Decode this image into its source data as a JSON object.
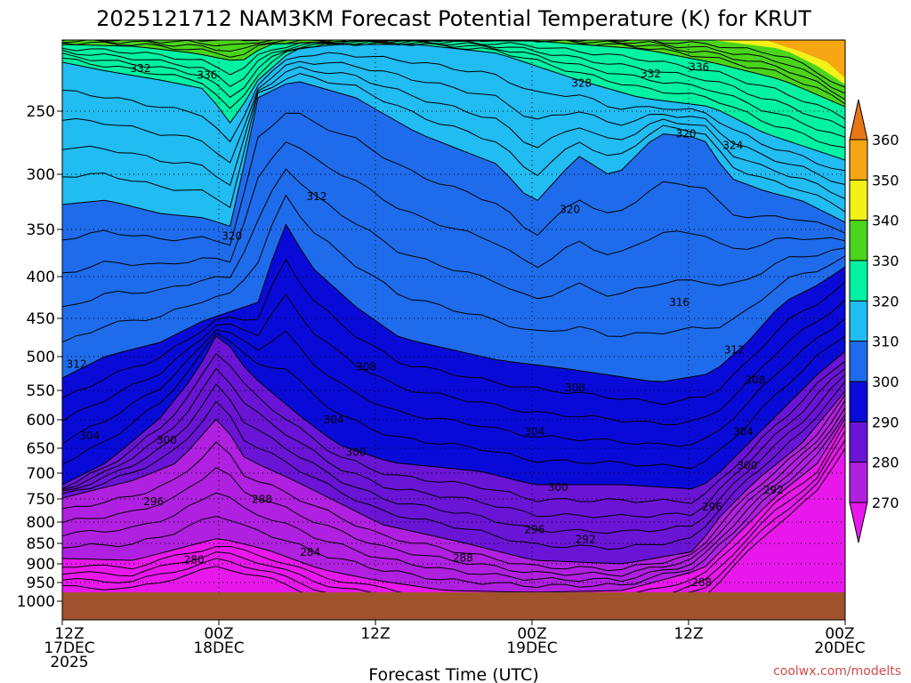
{
  "chart_data": {
    "type": "heatmap",
    "title": "2025121712 NAM3KM Forecast Potential Temperature (K) for KRUT",
    "xlabel": "Forecast Time (UTC)",
    "ylabel": "",
    "credit": "coolwx.com/modelts",
    "x_hours": [
      0,
      12,
      24,
      36,
      48,
      60
    ],
    "x_tick_labels": [
      [
        "12Z",
        "17DEC",
        "2025"
      ],
      [
        "00Z",
        "18DEC"
      ],
      [
        "12Z"
      ],
      [
        "00Z",
        "19DEC"
      ],
      [
        "12Z"
      ],
      [
        "00Z",
        "20DEC"
      ]
    ],
    "y_ticks": [
      250,
      300,
      350,
      400,
      450,
      500,
      550,
      600,
      650,
      700,
      750,
      800,
      850,
      900,
      950,
      1000
    ],
    "y_tick_labels": [
      "250",
      "300",
      "350",
      "400",
      "450",
      "500",
      "550",
      "600",
      "650",
      "700",
      "750",
      "800",
      "850",
      "900",
      "950",
      "1000"
    ],
    "ylim_hPa": [
      200,
      1030
    ],
    "xlim_hours": [
      0,
      60
    ],
    "colorbar": {
      "labels": [
        "360",
        "350",
        "340",
        "330",
        "320",
        "310",
        "300",
        "290",
        "280",
        "270"
      ],
      "levels": [
        270,
        280,
        290,
        300,
        310,
        320,
        330,
        340,
        350,
        360
      ],
      "colors": [
        "#e818ec",
        "#b020e0",
        "#6a14d6",
        "#0a0ad8",
        "#1e6cec",
        "#20bcf2",
        "#00f2a2",
        "#4ad41c",
        "#f2f218",
        "#f5a612",
        "#e87614"
      ]
    },
    "ground_color": "#a0522d",
    "contour_labels": [
      {
        "text": "332",
        "x_hour": 6.0,
        "p": 218
      },
      {
        "text": "336",
        "x_hour": 11.1,
        "p": 223
      },
      {
        "text": "328",
        "x_hour": 39.8,
        "p": 229
      },
      {
        "text": "332",
        "x_hour": 45.1,
        "p": 222
      },
      {
        "text": "336",
        "x_hour": 48.8,
        "p": 217
      },
      {
        "text": "320",
        "x_hour": 47.8,
        "p": 268
      },
      {
        "text": "324",
        "x_hour": 51.4,
        "p": 277
      },
      {
        "text": "312",
        "x_hour": 19.5,
        "p": 320
      },
      {
        "text": "320",
        "x_hour": 13.0,
        "p": 357
      },
      {
        "text": "320",
        "x_hour": 38.9,
        "p": 332
      },
      {
        "text": "316",
        "x_hour": 47.3,
        "p": 431
      },
      {
        "text": "312",
        "x_hour": 51.5,
        "p": 491
      },
      {
        "text": "312",
        "x_hour": 1.1,
        "p": 511
      },
      {
        "text": "308",
        "x_hour": 23.3,
        "p": 515
      },
      {
        "text": "308",
        "x_hour": 39.3,
        "p": 546
      },
      {
        "text": "308",
        "x_hour": 53.1,
        "p": 535
      },
      {
        "text": "304",
        "x_hour": 2.1,
        "p": 628
      },
      {
        "text": "304",
        "x_hour": 20.8,
        "p": 600
      },
      {
        "text": "304",
        "x_hour": 36.2,
        "p": 621
      },
      {
        "text": "304",
        "x_hour": 52.2,
        "p": 621
      },
      {
        "text": "300",
        "x_hour": 8.0,
        "p": 636
      },
      {
        "text": "300",
        "x_hour": 22.5,
        "p": 658
      },
      {
        "text": "300",
        "x_hour": 38.0,
        "p": 728
      },
      {
        "text": "300",
        "x_hour": 52.5,
        "p": 685
      },
      {
        "text": "296",
        "x_hour": 7.0,
        "p": 756
      },
      {
        "text": "296",
        "x_hour": 36.2,
        "p": 818
      },
      {
        "text": "296",
        "x_hour": 49.8,
        "p": 767
      },
      {
        "text": "292",
        "x_hour": 40.1,
        "p": 841
      },
      {
        "text": "292",
        "x_hour": 54.5,
        "p": 733
      },
      {
        "text": "288",
        "x_hour": 15.3,
        "p": 751
      },
      {
        "text": "288",
        "x_hour": 30.7,
        "p": 886
      },
      {
        "text": "288",
        "x_hour": 49.0,
        "p": 950
      },
      {
        "text": "284",
        "x_hour": 19.0,
        "p": 872
      },
      {
        "text": "280",
        "x_hour": 10.1,
        "p": 890
      }
    ]
  }
}
